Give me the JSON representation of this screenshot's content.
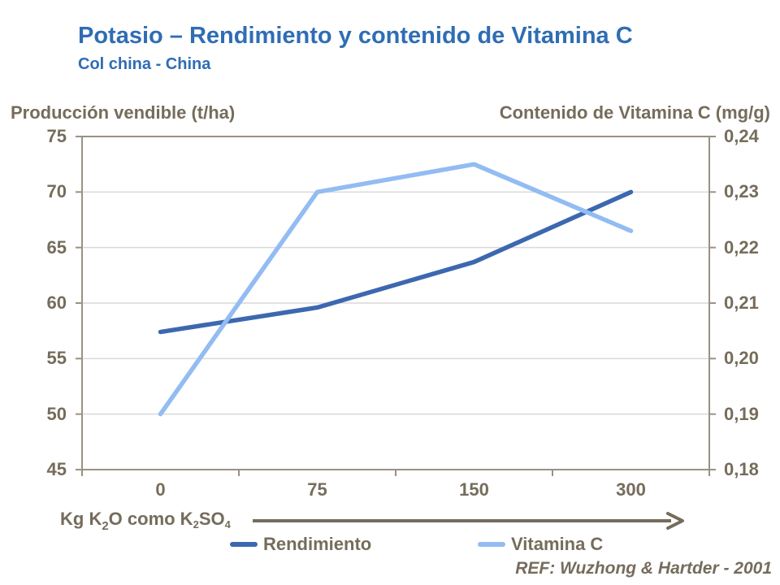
{
  "header": {
    "title": "Potasio – Rendimiento y contenido de Vitamina C",
    "subtitle": "Col china - China"
  },
  "footer": {
    "reference": "REF: Wuzhong & Hartder - 2001"
  },
  "colors": {
    "title_blue": "#2F6DB4",
    "axis_text": "#756C5B",
    "plot_border": "#9A9184",
    "gridline": "#D9D9D9",
    "rendimiento_line": "#3C68B0",
    "vitamina_line": "#92BCF2"
  },
  "chart_data": {
    "type": "line",
    "categories": [
      "0",
      "75",
      "150",
      "300"
    ],
    "series": [
      {
        "name": "Rendimiento",
        "axis": "left",
        "color": "#3C68B0",
        "values": [
          57.4,
          59.6,
          63.7,
          70
        ]
      },
      {
        "name": "Vitamina C",
        "axis": "right",
        "color": "#92BCF2",
        "values": [
          0.19,
          0.23,
          0.235,
          0.223
        ]
      }
    ],
    "left_axis": {
      "title": "Producción vendible (t/ha)",
      "min": 45,
      "max": 75,
      "tick_labels": [
        "75",
        "70",
        "65",
        "60",
        "55",
        "50",
        "45"
      ]
    },
    "right_axis": {
      "title": "Contenido de Vitamina C (mg/g)",
      "min": 0.18,
      "max": 0.24,
      "tick_labels": [
        "0,24",
        "0,23",
        "0,22",
        "0,21",
        "0,20",
        "0,19",
        "0,18"
      ]
    },
    "x_axis": {
      "title_parts": {
        "prefix": "Kg K",
        "sub1": "2",
        "mid1": "O como K",
        "sub2": "2",
        "mid2": "SO",
        "sub3": "4"
      }
    },
    "grid": "horizontal-only",
    "legend_position": "bottom"
  }
}
